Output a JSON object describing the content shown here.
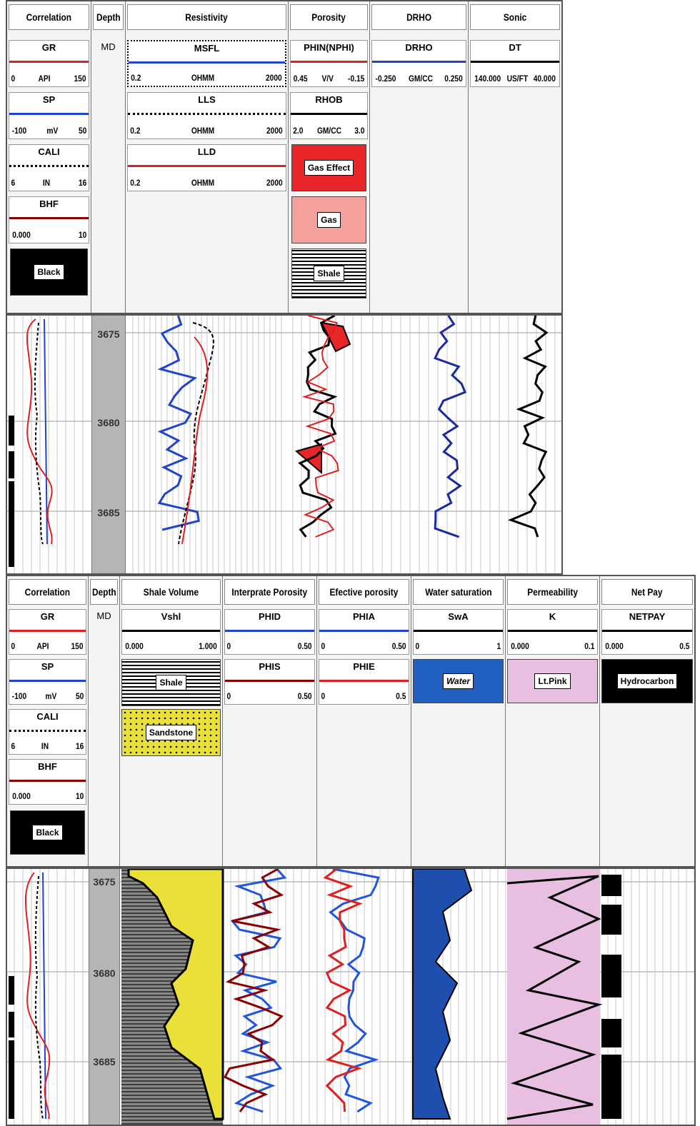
{
  "panel1": {
    "columns": {
      "correlation": "Correlation",
      "depth": "Depth",
      "resistivity": "Resistivity",
      "porosity": "Porosity",
      "drho": "DRHO",
      "sonic": "Sonic"
    },
    "tracks": {
      "gr": {
        "name": "GR",
        "unit": "API",
        "min": "0",
        "max": "150"
      },
      "sp": {
        "name": "SP",
        "unit": "mV",
        "min": "-100",
        "max": "50"
      },
      "cali": {
        "name": "CALI",
        "unit": "IN",
        "min": "6",
        "max": "16"
      },
      "bhf": {
        "name": "BHF",
        "min": "0.000",
        "max": "10"
      },
      "black": "Black",
      "md": "MD",
      "msfl": {
        "name": "MSFL",
        "unit": "OHMM",
        "min": "0.2",
        "max": "2000"
      },
      "lls": {
        "name": "LLS",
        "unit": "OHMM",
        "min": "0.2",
        "max": "2000"
      },
      "lld": {
        "name": "LLD",
        "unit": "OHMM",
        "min": "0.2",
        "max": "2000"
      },
      "phin": {
        "name": "PHIN(NPHI)",
        "unit": "V/V",
        "min": "0.45",
        "max": "-0.15"
      },
      "rhob": {
        "name": "RHOB",
        "unit": "GM/CC",
        "min": "2.0",
        "max": "3.0"
      },
      "gas_effect": "Gas Effect",
      "gas": "Gas",
      "shale": "Shale",
      "drho": {
        "name": "DRHO",
        "unit": "GM/CC",
        "min": "-0.250",
        "max": "0.250"
      },
      "dt": {
        "name": "DT",
        "unit": "US/FT",
        "min": "140.000",
        "max": "40.000"
      }
    },
    "depths": [
      "3675",
      "3680",
      "3685"
    ]
  },
  "panel2": {
    "columns": {
      "correlation": "Correlation",
      "depth": "Depth",
      "shale_volume": "Shale Volume",
      "interp_porosity": "Interprate Porosity",
      "eff_porosity": "Efective porosity",
      "water_sat": "Water saturation",
      "permeability": "Permeability",
      "net_pay": "Net Pay"
    },
    "tracks": {
      "gr": {
        "name": "GR",
        "unit": "API",
        "min": "0",
        "max": "150"
      },
      "sp": {
        "name": "SP",
        "unit": "mV",
        "min": "-100",
        "max": "50"
      },
      "cali": {
        "name": "CALI",
        "unit": "IN",
        "min": "6",
        "max": "16"
      },
      "bhf": {
        "name": "BHF",
        "min": "0.000",
        "max": "10"
      },
      "black": "Black",
      "md": "MD",
      "vshl": {
        "name": "Vshl",
        "min": "0.000",
        "max": "1.000"
      },
      "shale": "Shale",
      "sandstone": "Sandstone",
      "phid": {
        "name": "PHID",
        "min": "0",
        "max": "0.50"
      },
      "phis": {
        "name": "PHIS",
        "min": "0",
        "max": "0.50"
      },
      "phia": {
        "name": "PHIA",
        "min": "0",
        "max": "0.50"
      },
      "phie": {
        "name": "PHIE",
        "min": "0",
        "max": "0.5"
      },
      "swa": {
        "name": "SwA",
        "min": "0",
        "max": "1"
      },
      "water": "Water",
      "k": {
        "name": "K",
        "min": "0.000",
        "max": "0.1"
      },
      "ltpink": "Lt.Pink",
      "netpay": {
        "name": "NETPAY",
        "min": "0.000",
        "max": "0.5"
      },
      "hydrocarbon": "Hydrocarbon"
    },
    "depths": [
      "3675",
      "3680",
      "3685"
    ]
  },
  "colors": {
    "red": "#e02020",
    "blue": "#2244cc",
    "darkred": "#8b0000",
    "gas_effect": "#e8262a",
    "gas": "#f4a09c",
    "sandstone": "#ebe03a",
    "water": "#2060c0",
    "ltpink": "#e8bfe0"
  }
}
